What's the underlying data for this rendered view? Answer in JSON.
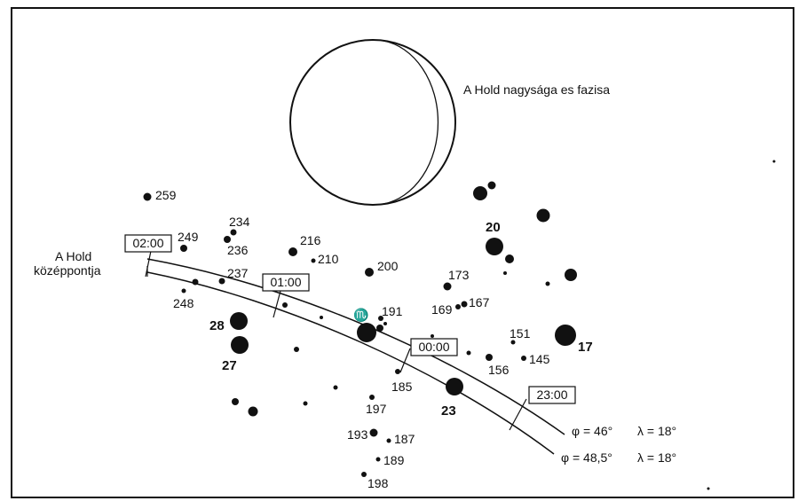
{
  "moon_caption": "A Hold nagysága es fazisa",
  "center_label": [
    "A Hold",
    "középpontja"
  ],
  "time_marks": [
    "02:00",
    "01:00",
    "00:00",
    "23:00"
  ],
  "track_labels": [
    {
      "phi": "φ = 46°",
      "lambda": "λ = 18°"
    },
    {
      "phi": "φ = 48,5°",
      "lambda": "λ = 18°"
    }
  ],
  "zodiac_symbol": "♏",
  "stars": [
    {
      "id": "259",
      "size": 4.5
    },
    {
      "id": "249",
      "size": 4
    },
    {
      "id": "234",
      "size": 3.5
    },
    {
      "id": "236",
      "size": 4
    },
    {
      "id": "216",
      "size": 5
    },
    {
      "id": "210",
      "size": 2.5
    },
    {
      "id": "237",
      "size": 3.5
    },
    {
      "id": "248",
      "size": 2.5
    },
    {
      "id": "200",
      "size": 5
    },
    {
      "id": "173",
      "size": 4.5
    },
    {
      "id": "169",
      "size": 3
    },
    {
      "id": "167",
      "size": 3.5
    },
    {
      "id": "191",
      "size": 3
    },
    {
      "id": "28",
      "size": 10
    },
    {
      "id": "27",
      "size": 10
    },
    {
      "id": "185",
      "size": 3
    },
    {
      "id": "197",
      "size": 3
    },
    {
      "id": "23",
      "size": 10
    },
    {
      "id": "20",
      "size": 10
    },
    {
      "id": "17",
      "size": 12
    },
    {
      "id": "151",
      "size": 2.5
    },
    {
      "id": "156",
      "size": 4
    },
    {
      "id": "145",
      "size": 3
    },
    {
      "id": "193",
      "size": 4.5
    },
    {
      "id": "187",
      "size": 2.5
    },
    {
      "id": "189",
      "size": 2.5
    },
    {
      "id": "198",
      "size": 3
    }
  ]
}
